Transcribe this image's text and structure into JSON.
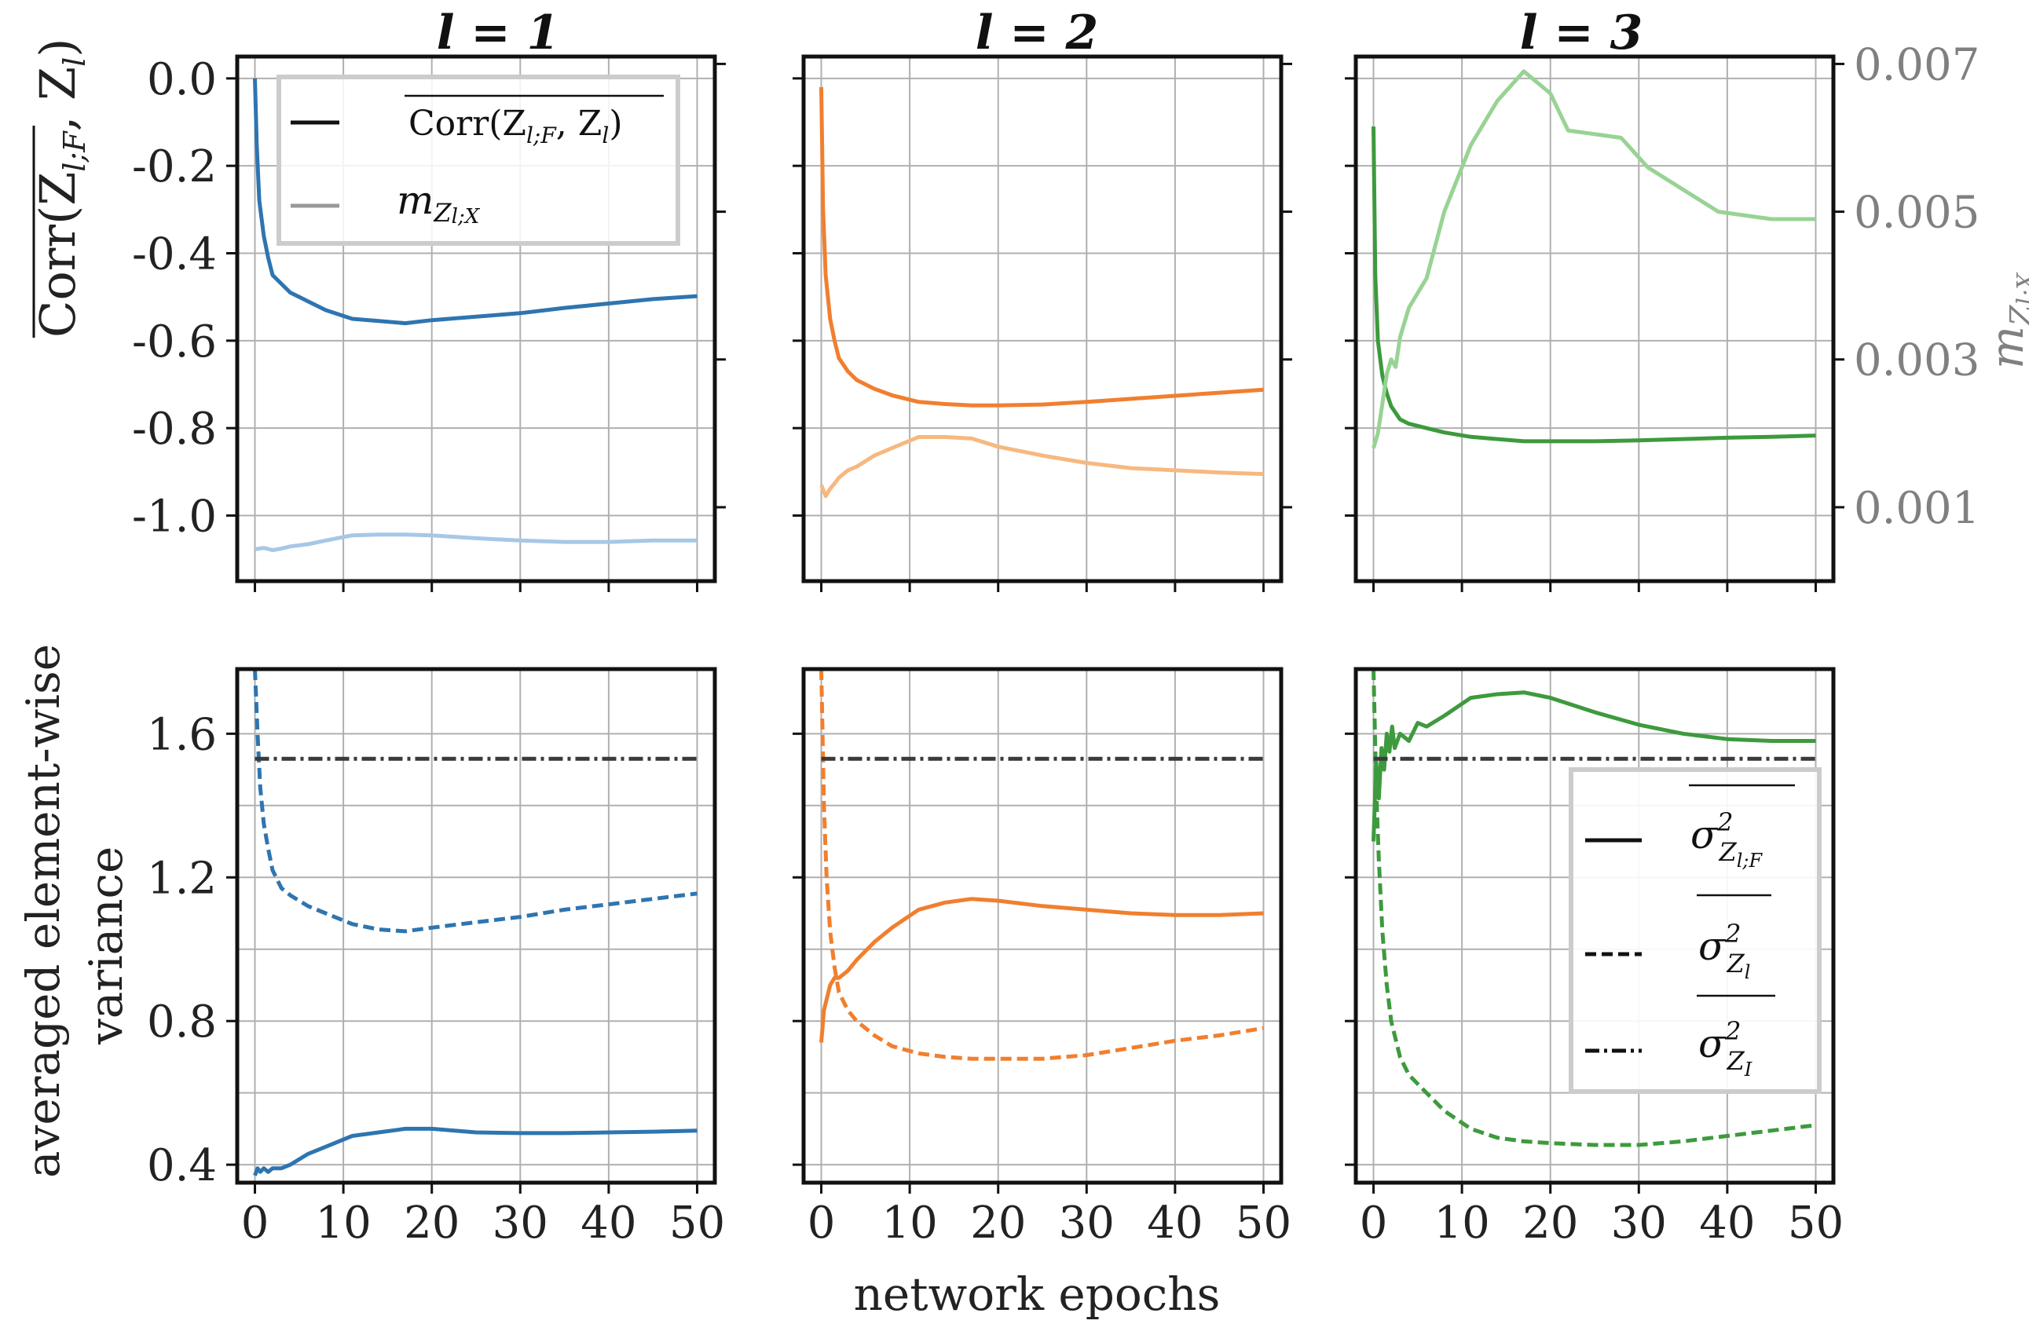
{
  "figure": {
    "shared_xlabel": "network epochs",
    "left_top_ylabel": "Corr(Z_{l;F}, Z_l)",
    "left_top_ylabel_display": "Corr(Z",
    "left_top_ylabel_sub": "l;F",
    "left_top_ylabel_mid": ", Z",
    "left_top_ylabel_sub2": "l",
    "left_top_ylabel_end": ")",
    "left_bottom_ylabel_line1": "averaged element-wise",
    "left_bottom_ylabel_line2": "variance",
    "right_top_ylabel": "m_{Z_l;X}",
    "right_top_ylabel_main": "m",
    "right_top_ylabel_sub": "Z",
    "right_top_ylabel_subsub": "l;X"
  },
  "columns": [
    {
      "title": "l = 1",
      "color": "#2e75b0",
      "light_color": "#a6c8e6"
    },
    {
      "title": "l = 2",
      "color": "#f07f2f",
      "light_color": "#f7b880"
    },
    {
      "title": "l = 3",
      "color": "#3d9a3d",
      "light_color": "#98d394"
    }
  ],
  "legend_top": {
    "corr_label": "Corr(Z_{l;F}, Z_l)",
    "corr_text": "Corr(Z",
    "corr_sub1": "l;F",
    "corr_mid": ", Z",
    "corr_sub2": "l",
    "corr_end": ")",
    "m_label": "m_{Z_l;X}",
    "m_text": "m",
    "m_sub": "Z",
    "m_subsub": "l;X",
    "corr_line_color": "#111111",
    "m_line_color": "#999999"
  },
  "legend_bottom": {
    "items": [
      {
        "label": "σ²_{Z_{l;F}}",
        "sym": "σ",
        "sup": "2",
        "sub": "Z",
        "subsub": "l;F",
        "style": "solid"
      },
      {
        "label": "σ²_{Z_l}",
        "sym": "σ",
        "sup": "2",
        "sub": "Z",
        "subsub": "l",
        "style": "dashed"
      },
      {
        "label": "σ²_{Z_I}",
        "sym": "σ",
        "sup": "2",
        "sub": "Z",
        "subsub": "I",
        "style": "dashdot"
      }
    ]
  },
  "chart_data": [
    {
      "type": "line",
      "panel": "top-l1",
      "title": "l = 1",
      "xlim": [
        -2,
        52
      ],
      "ylim": [
        -1.15,
        0.05
      ],
      "y2lim": [
        0.0,
        0.0071
      ],
      "xticks": [
        "0",
        "10",
        "20",
        "30",
        "40",
        "50"
      ],
      "yticks": [
        "0.0",
        "-0.2",
        "-0.4",
        "-0.6",
        "-0.8",
        "-1.0"
      ],
      "y2ticks": [
        "0.007",
        "0.005",
        "0.003",
        "0.001"
      ],
      "ylabel": "Corr(Z_{l;F}, Z_l)",
      "series": [
        {
          "name": "Corr(Z_{l;F}, Z_l)",
          "axis": "left",
          "x": [
            0,
            0.2,
            0.5,
            1,
            1.5,
            2,
            3,
            4,
            6,
            8,
            11,
            14,
            17,
            20,
            25,
            30,
            35,
            40,
            45,
            50
          ],
          "y": [
            0.0,
            -0.15,
            -0.28,
            -0.36,
            -0.41,
            -0.45,
            -0.47,
            -0.49,
            -0.51,
            -0.53,
            -0.55,
            -0.555,
            -0.56,
            -0.553,
            -0.545,
            -0.537,
            -0.525,
            -0.515,
            -0.505,
            -0.498
          ]
        },
        {
          "name": "m_{Z_l;X}",
          "axis": "right",
          "x": [
            0,
            1,
            2,
            3,
            4,
            6,
            8,
            11,
            14,
            17,
            20,
            25,
            30,
            35,
            40,
            45,
            50
          ],
          "y": [
            0.00043,
            0.00045,
            0.00042,
            0.00044,
            0.00047,
            0.0005,
            0.00055,
            0.00062,
            0.00063,
            0.00063,
            0.00062,
            0.00058,
            0.00055,
            0.00053,
            0.00053,
            0.00055,
            0.00055
          ]
        }
      ]
    },
    {
      "type": "line",
      "panel": "top-l2",
      "title": "l = 2",
      "xlim": [
        -2,
        52
      ],
      "ylim": [
        -1.15,
        0.05
      ],
      "y2lim": [
        0.0,
        0.0071
      ],
      "xticks": [
        "0",
        "10",
        "20",
        "30",
        "40",
        "50"
      ],
      "series": [
        {
          "name": "Corr(Z_{l;F}, Z_l)",
          "axis": "left",
          "x": [
            0,
            0.2,
            0.5,
            1,
            1.5,
            2,
            3,
            4,
            6,
            8,
            11,
            14,
            17,
            20,
            25,
            30,
            35,
            40,
            45,
            50
          ],
          "y": [
            -0.02,
            -0.3,
            -0.45,
            -0.55,
            -0.6,
            -0.64,
            -0.67,
            -0.69,
            -0.71,
            -0.725,
            -0.74,
            -0.745,
            -0.748,
            -0.748,
            -0.746,
            -0.74,
            -0.733,
            -0.726,
            -0.719,
            -0.712
          ]
        },
        {
          "name": "m_{Z_l;X}",
          "axis": "right",
          "x": [
            0,
            0.5,
            1,
            1.5,
            2,
            3,
            4,
            6,
            8,
            11,
            14,
            17,
            20,
            25,
            30,
            35,
            40,
            45,
            50
          ],
          "y": [
            0.0013,
            0.00115,
            0.00125,
            0.00132,
            0.0014,
            0.0015,
            0.00155,
            0.0017,
            0.0018,
            0.00195,
            0.00195,
            0.00193,
            0.00182,
            0.0017,
            0.0016,
            0.00153,
            0.0015,
            0.00147,
            0.00145
          ]
        }
      ]
    },
    {
      "type": "line",
      "panel": "top-l3",
      "title": "l = 3",
      "xlim": [
        -2,
        52
      ],
      "ylim": [
        -1.15,
        0.05
      ],
      "y2lim": [
        0.0,
        0.0071
      ],
      "xticks": [
        "0",
        "10",
        "20",
        "30",
        "40",
        "50"
      ],
      "y2ticks": [
        "0.007",
        "0.005",
        "0.003",
        "0.001"
      ],
      "y2label": "m_{Z_l;X}",
      "series": [
        {
          "name": "Corr(Z_{l;F}, Z_l)",
          "axis": "left",
          "x": [
            0,
            0.2,
            0.5,
            1,
            1.5,
            2,
            3,
            4,
            6,
            8,
            11,
            14,
            17,
            20,
            25,
            30,
            35,
            40,
            45,
            50
          ],
          "y": [
            -0.11,
            -0.45,
            -0.6,
            -0.68,
            -0.72,
            -0.75,
            -0.78,
            -0.79,
            -0.8,
            -0.81,
            -0.82,
            -0.825,
            -0.83,
            -0.83,
            -0.83,
            -0.828,
            -0.825,
            -0.822,
            -0.82,
            -0.817
          ]
        },
        {
          "name": "m_{Z_l;X}",
          "axis": "right",
          "x": [
            0,
            0.5,
            1,
            1.5,
            2,
            2.5,
            3,
            4,
            5,
            6,
            8,
            11,
            14,
            17,
            20,
            22,
            25,
            28,
            31,
            35,
            39,
            45,
            50
          ],
          "y": [
            0.0018,
            0.002,
            0.0024,
            0.0028,
            0.003,
            0.0029,
            0.0033,
            0.0037,
            0.0039,
            0.0041,
            0.005,
            0.0059,
            0.0065,
            0.0069,
            0.0066,
            0.0061,
            0.00605,
            0.006,
            0.0056,
            0.0053,
            0.005,
            0.0049,
            0.0049
          ]
        }
      ]
    },
    {
      "type": "line",
      "panel": "bottom-l1",
      "xlim": [
        -2,
        52
      ],
      "ylim": [
        0.35,
        1.78
      ],
      "xticks": [
        "0",
        "10",
        "20",
        "30",
        "40",
        "50"
      ],
      "yticks": [
        "1.6",
        "1.2",
        "0.8",
        "0.4"
      ],
      "ylabel": "averaged element-wise variance",
      "series": [
        {
          "name": "σ²_{Z_{l;F}}",
          "style": "solid",
          "x": [
            0,
            0.3,
            0.6,
            1,
            1.5,
            2,
            3,
            4,
            6,
            8,
            11,
            14,
            17,
            20,
            25,
            30,
            35,
            40,
            45,
            50
          ],
          "y": [
            0.37,
            0.39,
            0.38,
            0.39,
            0.38,
            0.39,
            0.39,
            0.4,
            0.43,
            0.45,
            0.48,
            0.49,
            0.5,
            0.5,
            0.49,
            0.488,
            0.488,
            0.49,
            0.492,
            0.495
          ]
        },
        {
          "name": "σ²_{Z_l}",
          "style": "dashed",
          "x": [
            0,
            0.3,
            0.6,
            1,
            1.5,
            2,
            3,
            4,
            6,
            8,
            11,
            14,
            17,
            20,
            25,
            30,
            35,
            40,
            45,
            50
          ],
          "y": [
            1.78,
            1.6,
            1.45,
            1.35,
            1.28,
            1.22,
            1.17,
            1.15,
            1.12,
            1.1,
            1.07,
            1.055,
            1.05,
            1.06,
            1.075,
            1.09,
            1.11,
            1.125,
            1.14,
            1.155
          ]
        },
        {
          "name": "σ²_{Z_I}",
          "style": "dashdot",
          "x": [
            0,
            50
          ],
          "y": [
            1.53,
            1.53
          ]
        }
      ]
    },
    {
      "type": "line",
      "panel": "bottom-l2",
      "xlim": [
        -2,
        52
      ],
      "ylim": [
        0.35,
        1.78
      ],
      "xticks": [
        "0",
        "10",
        "20",
        "30",
        "40",
        "50"
      ],
      "series": [
        {
          "name": "σ²_{Z_{l;F}}",
          "style": "solid",
          "x": [
            0,
            0.3,
            0.6,
            1,
            1.5,
            2,
            3,
            4,
            6,
            8,
            11,
            14,
            17,
            20,
            25,
            30,
            35,
            40,
            45,
            50
          ],
          "y": [
            0.74,
            0.83,
            0.86,
            0.9,
            0.92,
            0.92,
            0.94,
            0.97,
            1.02,
            1.06,
            1.11,
            1.13,
            1.14,
            1.135,
            1.12,
            1.11,
            1.1,
            1.095,
            1.095,
            1.1
          ]
        },
        {
          "name": "σ²_{Z_l}",
          "style": "dashed",
          "x": [
            0,
            0.3,
            0.6,
            1,
            1.5,
            2,
            3,
            4,
            6,
            8,
            11,
            14,
            17,
            20,
            25,
            30,
            35,
            40,
            45,
            50
          ],
          "y": [
            1.78,
            1.4,
            1.2,
            1.05,
            0.95,
            0.88,
            0.83,
            0.8,
            0.76,
            0.73,
            0.71,
            0.7,
            0.695,
            0.695,
            0.695,
            0.705,
            0.725,
            0.745,
            0.76,
            0.78
          ]
        },
        {
          "name": "σ²_{Z_I}",
          "style": "dashdot",
          "x": [
            0,
            50
          ],
          "y": [
            1.53,
            1.53
          ]
        }
      ]
    },
    {
      "type": "line",
      "panel": "bottom-l3",
      "xlim": [
        -2,
        52
      ],
      "ylim": [
        0.35,
        1.78
      ],
      "xticks": [
        "0",
        "10",
        "20",
        "30",
        "40",
        "50"
      ],
      "series": [
        {
          "name": "σ²_{Z_{l;F}}",
          "style": "solid",
          "x": [
            0,
            0.3,
            0.6,
            0.9,
            1.2,
            1.5,
            1.8,
            2.1,
            2.4,
            3,
            4,
            5,
            6,
            8,
            11,
            14,
            17,
            20,
            25,
            30,
            35,
            40,
            45,
            50
          ],
          "y": [
            1.3,
            1.52,
            1.42,
            1.56,
            1.5,
            1.6,
            1.55,
            1.62,
            1.56,
            1.6,
            1.58,
            1.63,
            1.62,
            1.65,
            1.7,
            1.71,
            1.715,
            1.7,
            1.66,
            1.625,
            1.6,
            1.585,
            1.58,
            1.58
          ]
        },
        {
          "name": "σ²_{Z_l}",
          "style": "dashed",
          "x": [
            0,
            0.3,
            0.6,
            1,
            1.5,
            2,
            3,
            4,
            6,
            8,
            11,
            14,
            17,
            20,
            25,
            30,
            35,
            40,
            45,
            50
          ],
          "y": [
            1.78,
            1.45,
            1.25,
            1.05,
            0.9,
            0.8,
            0.7,
            0.65,
            0.6,
            0.55,
            0.5,
            0.475,
            0.465,
            0.46,
            0.455,
            0.455,
            0.465,
            0.48,
            0.495,
            0.51
          ]
        },
        {
          "name": "σ²_{Z_I}",
          "style": "dashdot",
          "x": [
            0,
            50
          ],
          "y": [
            1.53,
            1.53
          ]
        }
      ]
    }
  ]
}
